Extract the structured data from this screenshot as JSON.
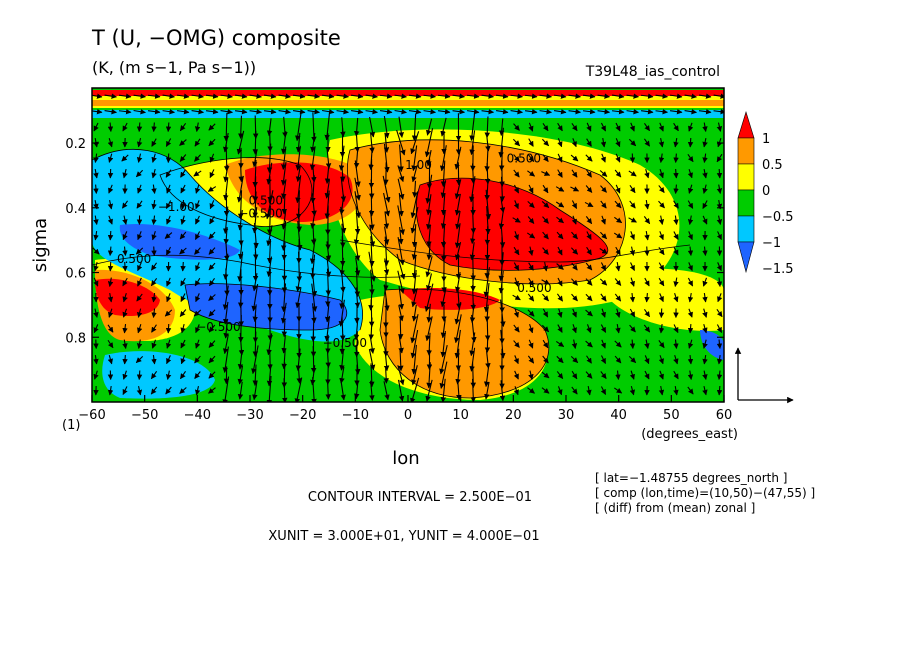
{
  "chart_data": {
    "type": "heatmap",
    "title": "T (U, −OMG) composite",
    "subtitle": "(K, (m s−1, Pa s−1))",
    "run_label": "T39L48_ias_control",
    "xlabel": "lon",
    "x_units_label": "(degrees_east)",
    "ylabel": "sigma",
    "x_ticks": [
      "−60",
      "−50",
      "−40",
      "−30",
      "−20",
      "−10",
      "0",
      "10",
      "20",
      "30",
      "40",
      "50",
      "60"
    ],
    "y_ticks": [
      "0.2",
      "0.4",
      "0.6",
      "0.8"
    ],
    "y_bottom_label": "(1)",
    "xlim": [
      -60,
      60
    ],
    "ylim": [
      1.0,
      0.03
    ],
    "colorbar": {
      "labels": [
        "1",
        "0.5",
        "0",
        "−0.5",
        "−1",
        "−1.5"
      ],
      "levels": [
        -1.5,
        -1,
        -0.5,
        0,
        0.5,
        1
      ],
      "colors": [
        "#1e64ff",
        "#00c8ff",
        "#00cc00",
        "#ffff00",
        "#ff9900",
        "#ff0000"
      ]
    },
    "contour_labels": [
      {
        "text": "1.00",
        "lon": 2,
        "sigma": 0.28
      },
      {
        "text": "0.500",
        "lon": 22,
        "sigma": 0.26
      },
      {
        "text": "−0.500",
        "lon": -28,
        "sigma": 0.43
      },
      {
        "text": "−1.00",
        "lon": -44,
        "sigma": 0.41
      },
      {
        "text": "0.500",
        "lon": -27,
        "sigma": 0.39
      },
      {
        "text": "0.500",
        "lon": -52,
        "sigma": 0.57
      },
      {
        "text": "0.500",
        "lon": 24,
        "sigma": 0.66
      },
      {
        "text": "−0.500",
        "lon": -36,
        "sigma": 0.78
      },
      {
        "text": "−0.500",
        "lon": -12,
        "sigma": 0.83
      }
    ],
    "info": [
      "[ lat=−1.48755 degrees_north ]",
      "[ comp (lon,time)=(10,50)−(47,55) ]",
      "[ (diff) from (mean) zonal ]"
    ],
    "contour_interval": "CONTOUR INTERVAL = 2.500E−01",
    "units_line": "XUNIT = 3.000E+01, YUNIT = 4.000E−01"
  }
}
